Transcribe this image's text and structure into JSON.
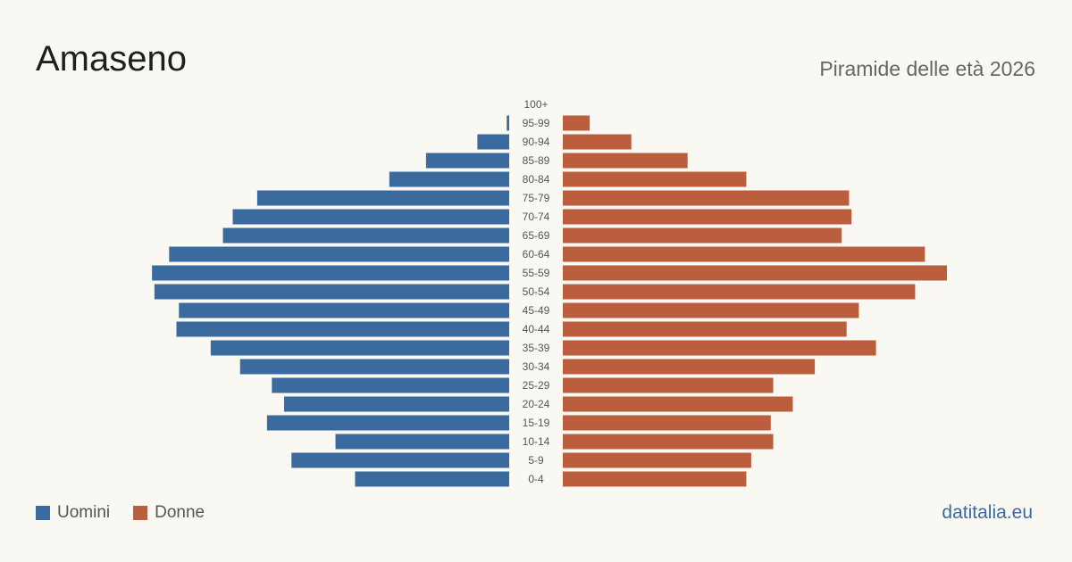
{
  "header": {
    "title": "Amaseno",
    "subtitle": "Piramide delle età 2026"
  },
  "legend": {
    "male_label": "Uomini",
    "female_label": "Donne"
  },
  "brand": "datitalia.eu",
  "colors": {
    "male": "#3b6a9e",
    "female": "#bb5e3e"
  },
  "chart_data": {
    "type": "bar",
    "orientation": "horizontal-diverging",
    "title": "Piramide delle età 2026",
    "categories": [
      "100+",
      "95-99",
      "90-94",
      "85-89",
      "80-84",
      "75-79",
      "70-74",
      "65-69",
      "60-64",
      "55-59",
      "50-54",
      "45-49",
      "40-44",
      "35-39",
      "30-34",
      "25-29",
      "20-24",
      "15-19",
      "10-14",
      "5-9",
      "0-4"
    ],
    "series": [
      {
        "name": "Uomini",
        "values": [
          0,
          1,
          13,
          34,
          49,
          103,
          113,
          117,
          139,
          146,
          145,
          135,
          136,
          122,
          110,
          97,
          92,
          99,
          71,
          89,
          63
        ]
      },
      {
        "name": "Donne",
        "values": [
          0,
          11,
          28,
          51,
          75,
          117,
          118,
          114,
          148,
          157,
          144,
          121,
          116,
          128,
          103,
          86,
          94,
          85,
          86,
          77,
          75
        ]
      }
    ],
    "grid": false,
    "legend_position": "bottom-left"
  }
}
